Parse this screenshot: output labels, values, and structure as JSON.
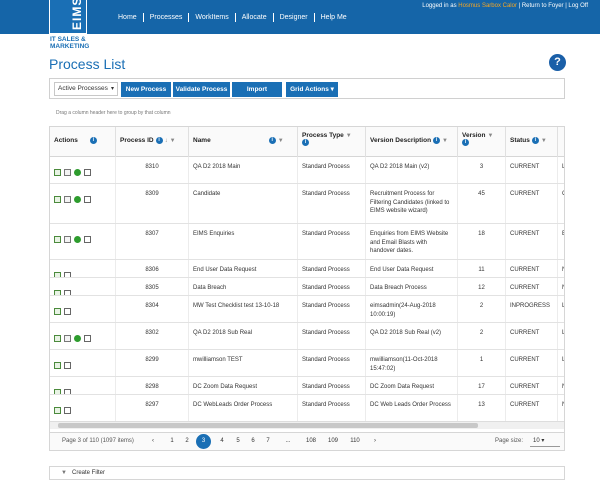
{
  "nav": {
    "logo": "EIMS",
    "logo_sub1": "IT SALES &",
    "logo_sub2": "MARKETING",
    "items": [
      "Home",
      "Processes",
      "WorkItems",
      "Allocate",
      "Designer",
      "Help Me"
    ],
    "user_prefix": "Logged in as ",
    "user_name": "Hosmus Sarbox Calor",
    "user_links": " | Return to Foyer | Log Off"
  },
  "page": {
    "title": "Process List",
    "help": "?"
  },
  "toolbar": {
    "filter_select": "Active Processes",
    "new_process": "New Process",
    "validate_process": "Validate Process",
    "import": "Import",
    "grid_actions": "Grid Actions ▾",
    "group_hint": "Drag a column header here to group by that column"
  },
  "grid": {
    "headers": {
      "actions": "Actions",
      "process_id": "Process ID",
      "name": "Name",
      "process_type": "Process Type",
      "version_description": "Version Description",
      "version": "Version",
      "status": "Status"
    },
    "rows": [
      {
        "id": "8310",
        "name": "QA D2 2018 Main",
        "type": "Standard Process",
        "desc": "QA D2 2018 Main (v2)",
        "version": "3",
        "status": "CURRENT",
        "extra": "L",
        "icons": 4
      },
      {
        "id": "8309",
        "name": "Candidate",
        "type": "Standard Process",
        "desc": "Recruitment Process for Filtering Candidates (linked to EIMS website wizard)",
        "version": "45",
        "status": "CURRENT",
        "extra": "C",
        "icons": 4
      },
      {
        "id": "8307",
        "name": "EIMS Enquiries",
        "type": "Standard Process",
        "desc": "Enquiries from EIMS Website and Email Blasts with handover dates.",
        "version": "18",
        "status": "CURRENT",
        "extra": "E",
        "icons": 4
      },
      {
        "id": "8306",
        "name": "End User Data Request",
        "type": "Standard Process",
        "desc": "End User Data Request",
        "version": "11",
        "status": "CURRENT",
        "extra": "N",
        "icons": 2
      },
      {
        "id": "8305",
        "name": "Data Breach",
        "type": "Standard Process",
        "desc": "Data Breach Process",
        "version": "12",
        "status": "CURRENT",
        "extra": "N",
        "icons": 2
      },
      {
        "id": "8304",
        "name": "MW Test Checklist test 13-10-18",
        "type": "Standard Process",
        "desc": "eimsadmin(24-Aug-2018 10:00:19)",
        "version": "2",
        "status": "INPROGRESS",
        "extra": "L",
        "icons": 2
      },
      {
        "id": "8302",
        "name": "QA D2 2018 Sub Real",
        "type": "Standard Process",
        "desc": "QA D2 2018 Sub Real (v2)",
        "version": "2",
        "status": "CURRENT",
        "extra": "L",
        "icons": 4
      },
      {
        "id": "8299",
        "name": "mwilliamson TEST",
        "type": "Standard Process",
        "desc": "mwilliamson(11-Oct-2018 15:47:02)",
        "version": "1",
        "status": "CURRENT",
        "extra": "L",
        "icons": 2
      },
      {
        "id": "8298",
        "name": "DC Zoom Data Request",
        "type": "Standard Process",
        "desc": "DC Zoom Data Request",
        "version": "17",
        "status": "CURRENT",
        "extra": "N",
        "icons": 2
      },
      {
        "id": "8297",
        "name": "DC WebLeads Order Process",
        "type": "Standard Process",
        "desc": "DC Web Leads Order Process",
        "version": "13",
        "status": "CURRENT",
        "extra": "N",
        "icons": 2
      }
    ]
  },
  "pager": {
    "info": "Page 3 of 110 (1097 items)",
    "prev": "‹",
    "next": "›",
    "pages": [
      "1",
      "2",
      "3",
      "4",
      "5",
      "6",
      "7",
      "...",
      "108",
      "109",
      "110"
    ],
    "active_page": "3",
    "size_label": "Page size:",
    "size_value": "10 ▾"
  },
  "filter": {
    "label": "Create Filter",
    "icon": "filter-icon"
  }
}
